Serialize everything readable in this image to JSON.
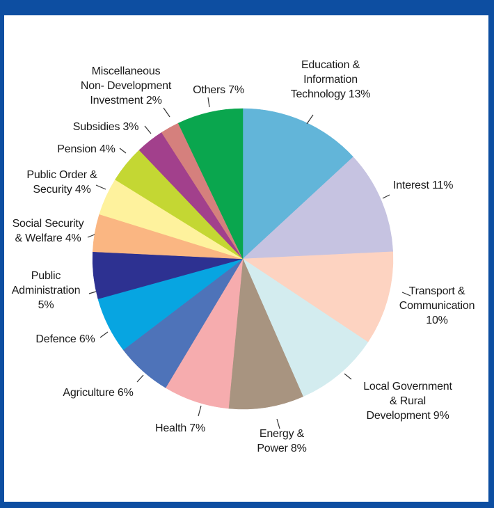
{
  "chart_data": {
    "type": "pie",
    "start": "12 o'clock",
    "direction": "clockwise",
    "slices": [
      {
        "label": "Education & Information Technology",
        "value": 13,
        "pct_text": "13%",
        "color": "#62b5d9"
      },
      {
        "label": "Interest",
        "value": 11,
        "pct_text": "11%",
        "color": "#c6c3e1"
      },
      {
        "label": "Transport & Communication",
        "value": 10,
        "pct_text": "10%",
        "color": "#fdd3c1"
      },
      {
        "label": "Local Government & Rural Development",
        "value": 9,
        "pct_text": "9%",
        "color": "#d3ecef"
      },
      {
        "label": "Energy & Power",
        "value": 8,
        "pct_text": "8%",
        "color": "#a89480"
      },
      {
        "label": "Health",
        "value": 7,
        "pct_text": "7%",
        "color": "#f6acae"
      },
      {
        "label": "Agriculture",
        "value": 6,
        "pct_text": "6%",
        "color": "#4e73b9"
      },
      {
        "label": "Defence",
        "value": 6,
        "pct_text": "6%",
        "color": "#07a5e1"
      },
      {
        "label": "Public Administration",
        "value": 5,
        "pct_text": "5%",
        "color": "#2d3191"
      },
      {
        "label": "Social Security & Welfare",
        "value": 4,
        "pct_text": "4%",
        "color": "#fab682"
      },
      {
        "label": "Public Order & Security",
        "value": 4,
        "pct_text": "4%",
        "color": "#fef29d"
      },
      {
        "label": "Pension",
        "value": 4,
        "pct_text": "4%",
        "color": "#c4d733"
      },
      {
        "label": "Subsidies",
        "value": 3,
        "pct_text": "3%",
        "color": "#a2408c"
      },
      {
        "label": "Miscellaneous Non- Development Investment",
        "value": 2,
        "pct_text": "2%",
        "color": "#d5807d"
      },
      {
        "label": "Others",
        "value": 7,
        "pct_text": "7%",
        "color": "#0aa64e"
      }
    ],
    "labels": [
      [
        "Education &",
        "Information",
        "Technology 13%"
      ],
      [
        "Interest 11%"
      ],
      [
        "Transport &",
        "Communication",
        "10%"
      ],
      [
        "Local Government",
        "& Rural",
        "Development 9%"
      ],
      [
        "Energy &",
        "Power 8%"
      ],
      [
        "Health 7%"
      ],
      [
        "Agriculture 6%"
      ],
      [
        "Defence 6%"
      ],
      [
        "Public",
        "Administration",
        "5%"
      ],
      [
        "Social Security",
        "& Welfare 4%"
      ],
      [
        "Public Order &",
        "Security 4%"
      ],
      [
        "Pension 4%"
      ],
      [
        "Subsidies 3%"
      ],
      [
        "Miscellaneous",
        "Non- Development",
        "Investment 2%"
      ],
      [
        "Others 7%"
      ]
    ]
  },
  "colors": {
    "frame": "#0d4ea1",
    "text": "#1a1a1a"
  }
}
